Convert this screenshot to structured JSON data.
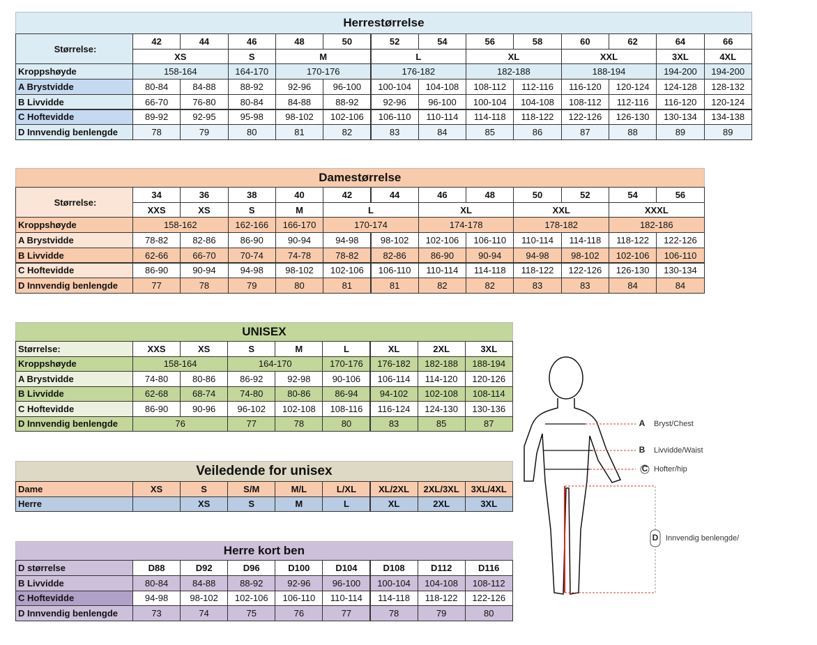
{
  "tables": [
    {
      "title": "Herrestørrelse",
      "rows": [
        {
          "label": "Størrelse:",
          "cells": [
            "42",
            "44",
            "46",
            "48",
            "50",
            "52",
            "54",
            "56",
            "58",
            "60",
            "62",
            "64",
            "66"
          ]
        },
        {
          "cells": [
            "XS",
            "S",
            "M",
            "L",
            "XL",
            "XXL",
            "3XL",
            "4XL"
          ]
        },
        {
          "label": "Kroppshøyde",
          "cells": [
            "158-164",
            "164-170",
            "170-176",
            "176-182",
            "182-188",
            "188-194",
            "194-200",
            "194-200"
          ]
        },
        {
          "label": "A Brystvidde",
          "cells": [
            "80-84",
            "84-88",
            "88-92",
            "92-96",
            "96-100",
            "100-104",
            "104-108",
            "108-112",
            "112-116",
            "116-120",
            "120-124",
            "124-128",
            "128-132"
          ]
        },
        {
          "label": "B Livvidde",
          "cells": [
            "66-70",
            "76-80",
            "80-84",
            "84-88",
            "88-92",
            "92-96",
            "96-100",
            "100-104",
            "104-108",
            "108-112",
            "112-116",
            "116-120",
            "120-124"
          ]
        },
        {
          "label": "C Hoftevidde",
          "cells": [
            "89-92",
            "92-95",
            "95-98",
            "98-102",
            "102-106",
            "106-110",
            "110-114",
            "114-118",
            "118-122",
            "122-126",
            "126-130",
            "130-134",
            "134-138"
          ]
        },
        {
          "label": "D Innvendig benlengde",
          "cells": [
            "78",
            "79",
            "80",
            "81",
            "82",
            "83",
            "84",
            "85",
            "86",
            "87",
            "88",
            "89",
            "89"
          ]
        }
      ]
    },
    {
      "title": "Damestørrelse",
      "rows": [
        {
          "label": "Størrelse:",
          "cells": [
            "34",
            "36",
            "38",
            "40",
            "42",
            "44",
            "46",
            "48",
            "50",
            "52",
            "54",
            "56"
          ]
        },
        {
          "cells": [
            "XXS",
            "XS",
            "S",
            "M",
            "L",
            "XL",
            "XXL",
            "XXXL"
          ]
        },
        {
          "label": "Kroppshøyde",
          "cells": [
            "158-162",
            "162-166",
            "166-170",
            "170-174",
            "174-178",
            "178-182",
            "182-186"
          ]
        },
        {
          "label": "A Brystvidde",
          "cells": [
            "78-82",
            "82-86",
            "86-90",
            "90-94",
            "94-98",
            "98-102",
            "102-106",
            "106-110",
            "110-114",
            "114-118",
            "118-122",
            "122-126"
          ]
        },
        {
          "label": "B Livvidde",
          "cells": [
            "62-66",
            "66-70",
            "70-74",
            "74-78",
            "78-82",
            "82-86",
            "86-90",
            "90-94",
            "94-98",
            "98-102",
            "102-106",
            "106-110"
          ]
        },
        {
          "label": "C Hoftevidde",
          "cells": [
            "86-90",
            "90-94",
            "94-98",
            "98-102",
            "102-106",
            "106-110",
            "110-114",
            "114-118",
            "118-122",
            "122-126",
            "126-130",
            "130-134"
          ]
        },
        {
          "label": "D Innvendig benlengde",
          "cells": [
            "77",
            "78",
            "79",
            "80",
            "81",
            "81",
            "82",
            "82",
            "83",
            "83",
            "84",
            "84"
          ]
        }
      ]
    },
    {
      "title": "UNISEX",
      "rows": [
        {
          "label": "Størrelse:",
          "cells": [
            "XXS",
            "XS",
            "S",
            "M",
            "L",
            "XL",
            "2XL",
            "3XL"
          ]
        },
        {
          "label": "Kroppshøyde",
          "cells": [
            "158-164",
            "164-170",
            "170-176",
            "176-182",
            "182-188",
            "188-194"
          ]
        },
        {
          "label": "A Brystvidde",
          "cells": [
            "74-80",
            "80-86",
            "86-92",
            "92-98",
            "90-106",
            "106-114",
            "114-120",
            "120-126"
          ]
        },
        {
          "label": "B Livvidde",
          "cells": [
            "62-68",
            "68-74",
            "74-80",
            "80-86",
            "86-94",
            "94-102",
            "102-108",
            "108-114"
          ]
        },
        {
          "label": "C Hoftevidde",
          "cells": [
            "86-90",
            "90-96",
            "96-102",
            "102-108",
            "108-116",
            "116-124",
            "124-130",
            "130-136"
          ]
        },
        {
          "label": "D Innvendig benlengde",
          "cells": [
            "76",
            "77",
            "78",
            "80",
            "83",
            "85",
            "87"
          ]
        }
      ]
    },
    {
      "title": "Veiledende for unisex",
      "rows": [
        {
          "label": "Dame",
          "cells": [
            "XS",
            "S",
            "S/M",
            "M/L",
            "L/XL",
            "XL/2XL",
            "2XL/3XL",
            "3XL/4XL"
          ]
        },
        {
          "label": "Herre",
          "cells": [
            "XS",
            "S",
            "M",
            "L",
            "XL",
            "2XL",
            "3XL"
          ]
        }
      ]
    },
    {
      "title": "Herre kort ben",
      "rows": [
        {
          "label": "D størrelse",
          "cells": [
            "D88",
            "D92",
            "D96",
            "D100",
            "D104",
            "D108",
            "D112",
            "D116"
          ]
        },
        {
          "label": "B Livvidde",
          "cells": [
            "80-84",
            "84-88",
            "88-92",
            "92-96",
            "96-100",
            "100-104",
            "104-108",
            "108-112"
          ]
        },
        {
          "label": "C Hoftevidde",
          "cells": [
            "94-98",
            "98-102",
            "102-106",
            "106-110",
            "110-114",
            "114-118",
            "118-122",
            "122-126"
          ]
        },
        {
          "label": "D Innvendig benlengde",
          "cells": [
            "73",
            "74",
            "75",
            "76",
            "77",
            "78",
            "79",
            "80"
          ]
        }
      ]
    }
  ],
  "figure": {
    "labels": [
      {
        "letter": "A",
        "text": "Bryst/Chest"
      },
      {
        "letter": "B",
        "text": "Livvidde/Waist"
      },
      {
        "letter": "C",
        "text": "Hofter/hip"
      },
      {
        "letter": "D",
        "text": "Innvendig benlengde/"
      }
    ]
  }
}
